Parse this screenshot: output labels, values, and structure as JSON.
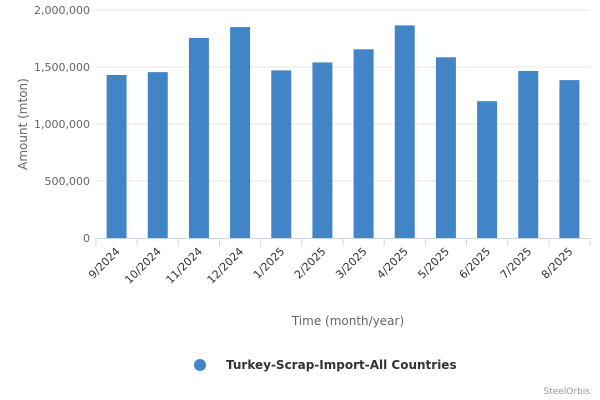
{
  "chart_data": {
    "type": "bar",
    "categories": [
      "9/2024",
      "10/2024",
      "11/2024",
      "12/2024",
      "1/2025",
      "2/2025",
      "3/2025",
      "4/2025",
      "5/2025",
      "6/2025",
      "7/2025",
      "8/2025"
    ],
    "series": [
      {
        "name": "Turkey-Scrap-Import-All Countries",
        "color": "#4285c6",
        "values": [
          1430000,
          1455000,
          1755000,
          1850000,
          1470000,
          1540000,
          1655000,
          1865000,
          1585000,
          1200000,
          1465000,
          1385000
        ]
      }
    ],
    "yticks": [
      "0",
      "500,000",
      "1,000,000",
      "1,500,000",
      "2,000,000"
    ],
    "ylim": [
      0,
      2000000
    ],
    "xlabel": "Time (month/year)",
    "ylabel": "Amount (mton)",
    "grid": true,
    "legend_position": "bottom-center"
  },
  "credit": "SteelOrbis"
}
